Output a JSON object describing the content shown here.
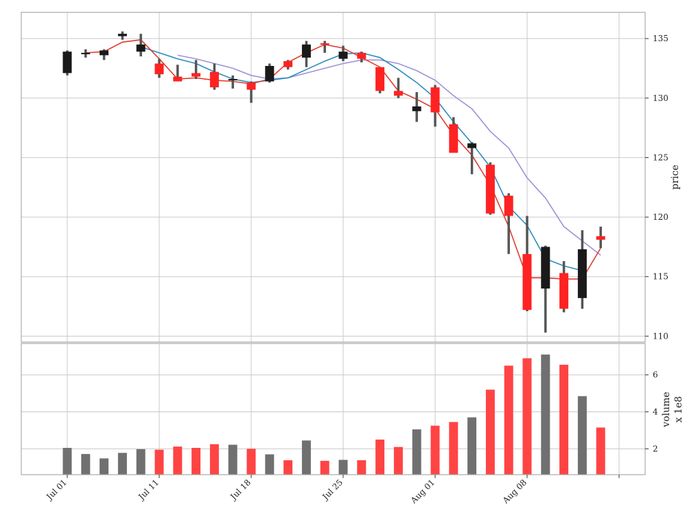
{
  "chart_data": {
    "type": "candlestick",
    "colors": {
      "up": "#1a1a1a",
      "down": "#ff2222",
      "wick": "#555555",
      "ma_short": "#e03c2c",
      "ma_mid": "#2b8cbe",
      "ma_long": "#9e92d6",
      "volume_up": "#707070",
      "volume_down": "#ff4444",
      "grid": "#c8c8c8",
      "frame": "#aaaaaa"
    },
    "x_tick_labels": [
      {
        "index": 0,
        "label": "Jul 01"
      },
      {
        "index": 5,
        "label": "Jul 11"
      },
      {
        "index": 10,
        "label": "Jul 18"
      },
      {
        "index": 15,
        "label": "Jul 25"
      },
      {
        "index": 20,
        "label": "Aug 01"
      },
      {
        "index": 25,
        "label": "Aug 08"
      },
      {
        "index": 30,
        "label": ""
      }
    ],
    "price_axis": {
      "label": "price",
      "ylim": [
        109.5,
        137.2
      ],
      "ticks": [
        110,
        115,
        120,
        125,
        130,
        135
      ]
    },
    "volume_axis": {
      "label": "volume",
      "multiplier_label": "x 1e8",
      "ylim": [
        0.6,
        7.7
      ],
      "ticks": [
        2,
        4,
        6
      ]
    },
    "candles": [
      {
        "o": 132.1,
        "h": 134.0,
        "l": 131.9,
        "c": 133.9
      },
      {
        "o": 133.7,
        "h": 134.1,
        "l": 133.4,
        "c": 133.8
      },
      {
        "o": 133.6,
        "h": 134.1,
        "l": 133.2,
        "c": 134.0
      },
      {
        "o": 135.2,
        "h": 135.6,
        "l": 134.9,
        "c": 135.4
      },
      {
        "o": 133.9,
        "h": 135.4,
        "l": 133.5,
        "c": 134.5
      },
      {
        "o": 132.9,
        "h": 133.3,
        "l": 131.7,
        "c": 132.0
      },
      {
        "o": 131.8,
        "h": 132.8,
        "l": 131.4,
        "c": 131.4
      },
      {
        "o": 132.1,
        "h": 133.2,
        "l": 131.6,
        "c": 131.8
      },
      {
        "o": 132.2,
        "h": 132.9,
        "l": 130.7,
        "c": 130.9
      },
      {
        "o": 131.5,
        "h": 131.9,
        "l": 130.8,
        "c": 131.6
      },
      {
        "o": 131.3,
        "h": 131.4,
        "l": 129.6,
        "c": 130.7
      },
      {
        "o": 131.4,
        "h": 132.9,
        "l": 131.3,
        "c": 132.7
      },
      {
        "o": 133.1,
        "h": 133.2,
        "l": 132.4,
        "c": 132.6
      },
      {
        "o": 133.4,
        "h": 134.8,
        "l": 132.6,
        "c": 134.5
      },
      {
        "o": 134.6,
        "h": 134.8,
        "l": 133.8,
        "c": 134.5
      },
      {
        "o": 133.3,
        "h": 134.4,
        "l": 133.1,
        "c": 133.9
      },
      {
        "o": 133.8,
        "h": 133.9,
        "l": 133.0,
        "c": 133.3
      },
      {
        "o": 132.6,
        "h": 132.6,
        "l": 130.4,
        "c": 130.6
      },
      {
        "o": 130.6,
        "h": 131.7,
        "l": 130.0,
        "c": 130.2
      },
      {
        "o": 128.9,
        "h": 130.5,
        "l": 128.0,
        "c": 129.3
      },
      {
        "o": 130.9,
        "h": 131.1,
        "l": 127.6,
        "c": 128.8
      },
      {
        "o": 127.8,
        "h": 128.4,
        "l": 125.4,
        "c": 125.4
      },
      {
        "o": 125.8,
        "h": 126.3,
        "l": 123.6,
        "c": 126.2
      },
      {
        "o": 124.4,
        "h": 124.6,
        "l": 120.2,
        "c": 120.3
      },
      {
        "o": 121.8,
        "h": 122.0,
        "l": 116.9,
        "c": 120.1
      },
      {
        "o": 116.9,
        "h": 120.1,
        "l": 112.1,
        "c": 112.2
      },
      {
        "o": 114.0,
        "h": 117.6,
        "l": 110.3,
        "c": 117.5
      },
      {
        "o": 115.3,
        "h": 116.3,
        "l": 112.0,
        "c": 112.3
      },
      {
        "o": 113.2,
        "h": 118.9,
        "l": 112.3,
        "c": 117.3
      },
      {
        "o": 118.4,
        "h": 119.2,
        "l": 117.4,
        "c": 118.1
      }
    ],
    "ma_short": [
      null,
      133.8,
      133.9,
      134.7,
      134.9,
      133.3,
      131.6,
      131.7,
      131.5,
      131.4,
      131.2,
      131.6,
      133.0,
      133.8,
      134.5,
      134.2,
      133.4,
      132.6,
      130.6,
      129.9,
      129.1,
      126.9,
      125.2,
      122.7,
      119.2,
      114.9,
      114.9,
      114.8,
      114.8,
      117.4
    ],
    "ma_mid": [
      null,
      null,
      null,
      null,
      134.3,
      133.8,
      133.3,
      132.9,
      132.2,
      131.6,
      131.3,
      131.5,
      131.7,
      132.4,
      133.1,
      133.7,
      133.8,
      133.4,
      132.4,
      131.3,
      130.0,
      128.0,
      126.2,
      124.2,
      120.9,
      119.3,
      116.5,
      115.9,
      115.5,
      null
    ],
    "ma_long": [
      null,
      null,
      null,
      null,
      null,
      null,
      133.6,
      133.3,
      132.9,
      132.5,
      131.9,
      131.6,
      131.7,
      132.1,
      132.5,
      132.9,
      133.2,
      133.2,
      132.9,
      132.3,
      131.5,
      130.2,
      129.1,
      127.2,
      125.8,
      123.3,
      121.6,
      119.2,
      118.0,
      116.8
    ],
    "volume": [
      2.05,
      1.72,
      1.48,
      1.78,
      1.98,
      1.95,
      2.12,
      2.05,
      2.25,
      2.22,
      2.0,
      1.7,
      1.38,
      2.45,
      1.35,
      1.4,
      1.38,
      2.5,
      2.1,
      3.05,
      3.25,
      3.45,
      3.7,
      5.2,
      6.5,
      6.9,
      7.1,
      6.55,
      4.85,
      3.15
    ]
  }
}
